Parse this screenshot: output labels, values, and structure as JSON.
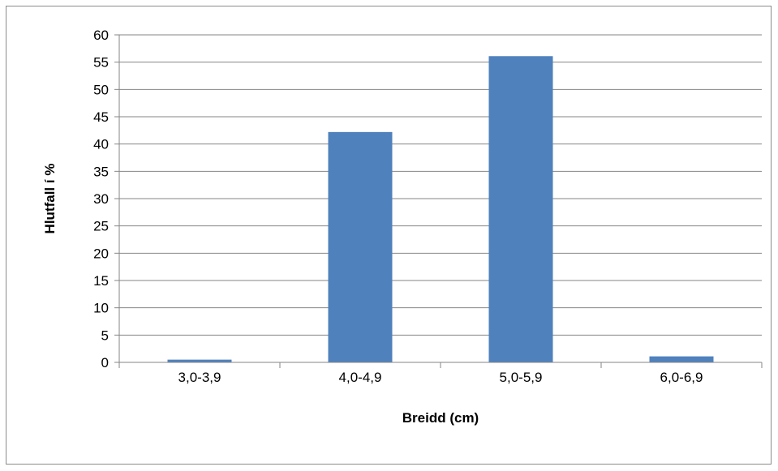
{
  "chart_data": {
    "type": "bar",
    "categories": [
      "3,0-3,9",
      "4,0-4,9",
      "5,0-5,9",
      "6,0-6,9"
    ],
    "values": [
      0.5,
      42.2,
      56.1,
      1.1
    ],
    "xlabel": "Breidd (cm)",
    "ylabel": "Hlutfall í %",
    "ylim": [
      0,
      60
    ],
    "yticks": [
      0,
      5,
      10,
      15,
      20,
      25,
      30,
      35,
      40,
      45,
      50,
      55,
      60
    ],
    "grid": true,
    "legend": "none",
    "colors": {
      "bar": "#4f81bd",
      "grid": "#868686",
      "axis": "#868686"
    }
  }
}
